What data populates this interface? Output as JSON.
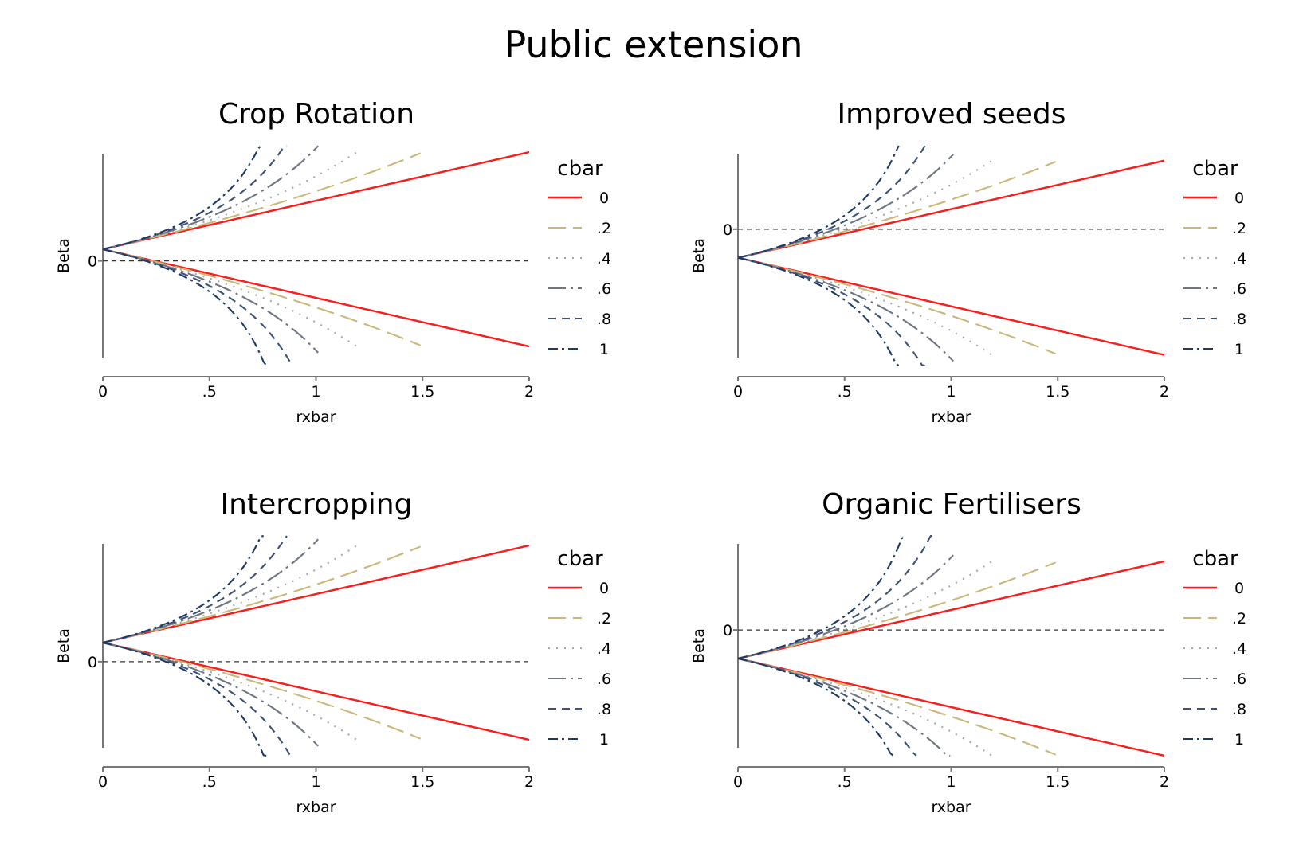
{
  "figure": {
    "title": "Public extension",
    "legend_title": "cbar",
    "xlabel": "rxbar",
    "ylabel": "Beta",
    "colors": {
      "0": "#ff1a1a",
      ".2": "#c9b87a",
      ".4": "#a8a8a8",
      ".6": "#6e7583",
      ".8": "#3d5275",
      "1": "#1f3a64",
      "zero_line": "#333333",
      "axis": "#777777"
    }
  },
  "chart_data": [
    {
      "type": "line",
      "title": "Crop Rotation",
      "xlabel": "rxbar",
      "ylabel": "Beta",
      "xlim": [
        0,
        2
      ],
      "x_ticks": [
        "0",
        ".5",
        "1",
        "1.5",
        "2"
      ],
      "y_ticks": [
        "0"
      ],
      "ylim": [
        -0.9,
        1.0
      ],
      "beta0": 0.11,
      "slope_at_cbar0": 0.46,
      "zero_line": true,
      "legend": {
        "title": "cbar",
        "entries": [
          "0",
          ".2",
          ".4",
          ".6",
          ".8",
          "1"
        ],
        "position": "right"
      },
      "series": [
        {
          "name": "0",
          "cbar": 0.0,
          "x_end": 2.0
        },
        {
          "name": ".2",
          "cbar": 0.2,
          "x_end": 1.49
        },
        {
          "name": ".4",
          "cbar": 0.4,
          "x_end": 1.19
        },
        {
          "name": ".6",
          "cbar": 0.6,
          "x_end": 1.01
        },
        {
          "name": ".8",
          "cbar": 0.8,
          "x_end": 0.93
        },
        {
          "name": "1",
          "cbar": 1.0,
          "x_end": 0.91
        }
      ]
    },
    {
      "type": "line",
      "title": "Improved seeds",
      "xlabel": "rxbar",
      "ylabel": "Beta",
      "xlim": [
        0,
        2
      ],
      "x_ticks": [
        "0",
        ".5",
        "1",
        "1.5",
        "2"
      ],
      "y_ticks": [
        "0"
      ],
      "ylim": [
        -1.2,
        0.7
      ],
      "beta0": -0.27,
      "slope_at_cbar0": 0.46,
      "zero_line": true,
      "legend": {
        "title": "cbar",
        "entries": [
          "0",
          ".2",
          ".4",
          ".6",
          ".8",
          "1"
        ],
        "position": "right"
      },
      "series": [
        {
          "name": "0",
          "cbar": 0.0,
          "x_end": 2.0
        },
        {
          "name": ".2",
          "cbar": 0.2,
          "x_end": 1.49
        },
        {
          "name": ".4",
          "cbar": 0.4,
          "x_end": 1.19
        },
        {
          "name": ".6",
          "cbar": 0.6,
          "x_end": 1.01
        },
        {
          "name": ".8",
          "cbar": 0.8,
          "x_end": 0.93
        },
        {
          "name": "1",
          "cbar": 1.0,
          "x_end": 0.91
        }
      ]
    },
    {
      "type": "line",
      "title": "Intercropping",
      "xlabel": "rxbar",
      "ylabel": "Beta",
      "xlim": [
        0,
        2
      ],
      "x_ticks": [
        "0",
        ".5",
        "1",
        "1.5",
        "2"
      ],
      "y_ticks": [
        "0"
      ],
      "ylim": [
        -0.8,
        1.1
      ],
      "beta0": 0.18,
      "slope_at_cbar0": 0.46,
      "zero_line": true,
      "legend": {
        "title": "cbar",
        "entries": [
          "0",
          ".2",
          ".4",
          ".6",
          ".8",
          "1"
        ],
        "position": "right"
      },
      "series": [
        {
          "name": "0",
          "cbar": 0.0,
          "x_end": 2.0
        },
        {
          "name": ".2",
          "cbar": 0.2,
          "x_end": 1.49
        },
        {
          "name": ".4",
          "cbar": 0.4,
          "x_end": 1.19
        },
        {
          "name": ".6",
          "cbar": 0.6,
          "x_end": 1.01
        },
        {
          "name": ".8",
          "cbar": 0.8,
          "x_end": 0.93
        },
        {
          "name": "1",
          "cbar": 1.0,
          "x_end": 0.91
        }
      ]
    },
    {
      "type": "line",
      "title": "Organic Fertilisers",
      "xlabel": "rxbar",
      "ylabel": "Beta",
      "xlim": [
        0,
        2
      ],
      "x_ticks": [
        "0",
        ".5",
        "1",
        "1.5",
        "2"
      ],
      "y_ticks": [
        "0"
      ],
      "ylim": [
        -1.1,
        0.8
      ],
      "beta0": -0.27,
      "slope_at_cbar0": 0.46,
      "zero_line": true,
      "legend": {
        "title": "cbar",
        "entries": [
          "0",
          ".2",
          ".4",
          ".6",
          ".8",
          "1"
        ],
        "position": "right"
      },
      "series": [
        {
          "name": "0",
          "cbar": 0.0,
          "x_end": 2.0
        },
        {
          "name": ".2",
          "cbar": 0.2,
          "x_end": 1.49
        },
        {
          "name": ".4",
          "cbar": 0.4,
          "x_end": 1.19
        },
        {
          "name": ".6",
          "cbar": 0.6,
          "x_end": 1.01
        },
        {
          "name": ".8",
          "cbar": 0.8,
          "x_end": 0.93
        },
        {
          "name": "1",
          "cbar": 1.0,
          "x_end": 0.91
        }
      ]
    }
  ]
}
